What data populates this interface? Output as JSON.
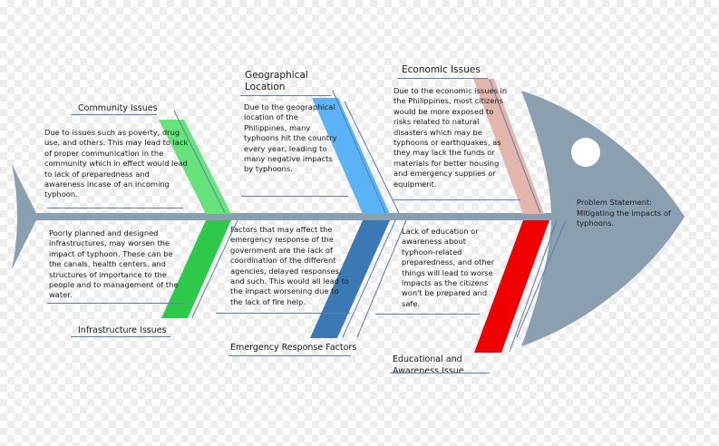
{
  "diagram": {
    "head": {
      "title": "Problem Statement:",
      "text": "Mitigating the impacts of typhoons."
    },
    "categories": {
      "community": {
        "title": "Community Issues",
        "text": "Due to issues such as poverty, drug use, and others. This may lead to lack of proper communication in the community which in effect would lead to lack of preparedness and awareness incase of an incoming typhoon.",
        "color": "#66e37a"
      },
      "geographical": {
        "title": "Geographical Location",
        "text": "Due to the geographical location of the Philippines, many typhoons hit the country every year, leading to many negative impacts by typhoons.",
        "color": "#5ab3f5"
      },
      "economic": {
        "title": "Economic Issues",
        "text": "Due to the economic issues in the Philippines, most citizens would be more exposed to risks related to natural disasters which may be typhoons or earthquakes, as they may lack the funds or materials for better housing and emergency supplies or equipment.",
        "color": "#e2b6ad"
      },
      "infrastructure": {
        "title": "Infrastructure Issues",
        "text": "Poorly planned and designed infrastructures, may worsen the impact of typhoon. These can be the canals, health centers, and structures of importance to the people and to management of the water.",
        "color": "#2ec84a"
      },
      "emergency": {
        "title": "Emergency Response Factors",
        "text": "Factors that may affect the emergency response of the government are the lack of coordination of the different agencies, delayed responses, and such. This would all lead to the impact worsening due to the lack of fire help.",
        "color": "#3b79b5"
      },
      "educational": {
        "title": "Educational and Awareness Issue",
        "text": "Lack of education or awareness about typhoon-related preparedness, and other things will lead to worse impacts as the citizens won't be prepared and safe.",
        "color": "#f00000"
      }
    },
    "colors": {
      "fish": "#8a9fb0",
      "spine": "#8a9fb0",
      "guide_line": "#5b7fa6"
    }
  }
}
